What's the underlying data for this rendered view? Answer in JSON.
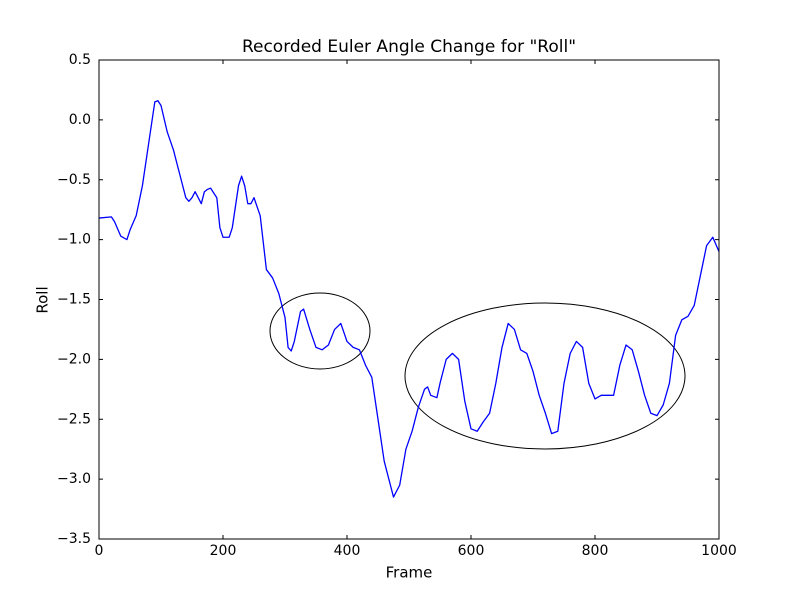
{
  "chart_data": {
    "type": "line",
    "title": "Recorded Euler Angle Change for \"Roll\"",
    "x_label": "Frame",
    "y_label": "Roll",
    "x": [
      0,
      20,
      25,
      35,
      45,
      50,
      60,
      70,
      80,
      90,
      95,
      100,
      110,
      120,
      130,
      140,
      145,
      150,
      155,
      160,
      165,
      170,
      175,
      180,
      190,
      195,
      200,
      210,
      215,
      225,
      230,
      235,
      240,
      245,
      250,
      260,
      270,
      280,
      290,
      300,
      305,
      310,
      315,
      325,
      330,
      340,
      350,
      360,
      370,
      380,
      390,
      400,
      410,
      420,
      430,
      440,
      450,
      460,
      470,
      475,
      485,
      495,
      505,
      515,
      525,
      530,
      535,
      545,
      550,
      560,
      570,
      580,
      590,
      600,
      610,
      620,
      630,
      640,
      650,
      660,
      670,
      680,
      690,
      700,
      710,
      720,
      730,
      740,
      750,
      760,
      770,
      780,
      790,
      800,
      810,
      820,
      830,
      840,
      850,
      860,
      870,
      880,
      890,
      900,
      910,
      920,
      930,
      940,
      950,
      960,
      970,
      980,
      990,
      1000
    ],
    "series": [
      {
        "name": "Roll",
        "color": "#0000ff",
        "values": [
          -0.82,
          -0.81,
          -0.85,
          -0.97,
          -1.0,
          -0.92,
          -0.8,
          -0.55,
          -0.2,
          0.15,
          0.16,
          0.12,
          -0.1,
          -0.25,
          -0.45,
          -0.65,
          -0.68,
          -0.65,
          -0.6,
          -0.65,
          -0.7,
          -0.6,
          -0.58,
          -0.57,
          -0.65,
          -0.9,
          -0.98,
          -0.98,
          -0.9,
          -0.55,
          -0.47,
          -0.55,
          -0.7,
          -0.7,
          -0.65,
          -0.8,
          -1.25,
          -1.32,
          -1.45,
          -1.65,
          -1.9,
          -1.93,
          -1.85,
          -1.6,
          -1.58,
          -1.75,
          -1.9,
          -1.92,
          -1.88,
          -1.75,
          -1.7,
          -1.85,
          -1.9,
          -1.92,
          -2.05,
          -2.15,
          -2.5,
          -2.85,
          -3.05,
          -3.15,
          -3.05,
          -2.75,
          -2.6,
          -2.4,
          -2.25,
          -2.23,
          -2.3,
          -2.32,
          -2.2,
          -2.0,
          -1.95,
          -2.0,
          -2.35,
          -2.58,
          -2.6,
          -2.52,
          -2.45,
          -2.2,
          -1.9,
          -1.7,
          -1.75,
          -1.92,
          -1.95,
          -2.1,
          -2.3,
          -2.45,
          -2.62,
          -2.6,
          -2.2,
          -1.95,
          -1.85,
          -1.9,
          -2.2,
          -2.33,
          -2.3,
          -2.3,
          -2.3,
          -2.05,
          -1.88,
          -1.92,
          -2.1,
          -2.3,
          -2.45,
          -2.47,
          -2.38,
          -2.2,
          -1.8,
          -1.67,
          -1.64,
          -1.55,
          -1.3,
          -1.05,
          -0.98,
          -1.1
        ]
      }
    ],
    "xlim": [
      0,
      1000
    ],
    "xticks": [
      0,
      200,
      400,
      600,
      800,
      1000
    ],
    "ylim": [
      -3.5,
      0.5
    ],
    "yticks": [
      {
        "value": -3.5,
        "label": "−3.5"
      },
      {
        "value": -3.0,
        "label": "−3.0"
      },
      {
        "value": -2.5,
        "label": "−2.5"
      },
      {
        "value": -2.0,
        "label": "−2.0"
      },
      {
        "value": -1.5,
        "label": "−1.5"
      },
      {
        "value": -1.0,
        "label": "−1.0"
      },
      {
        "value": -0.5,
        "label": "−0.5"
      },
      {
        "value": 0.0,
        "label": "0.0"
      },
      {
        "value": 0.5,
        "label": "0.5"
      }
    ],
    "grid": false
  }
}
